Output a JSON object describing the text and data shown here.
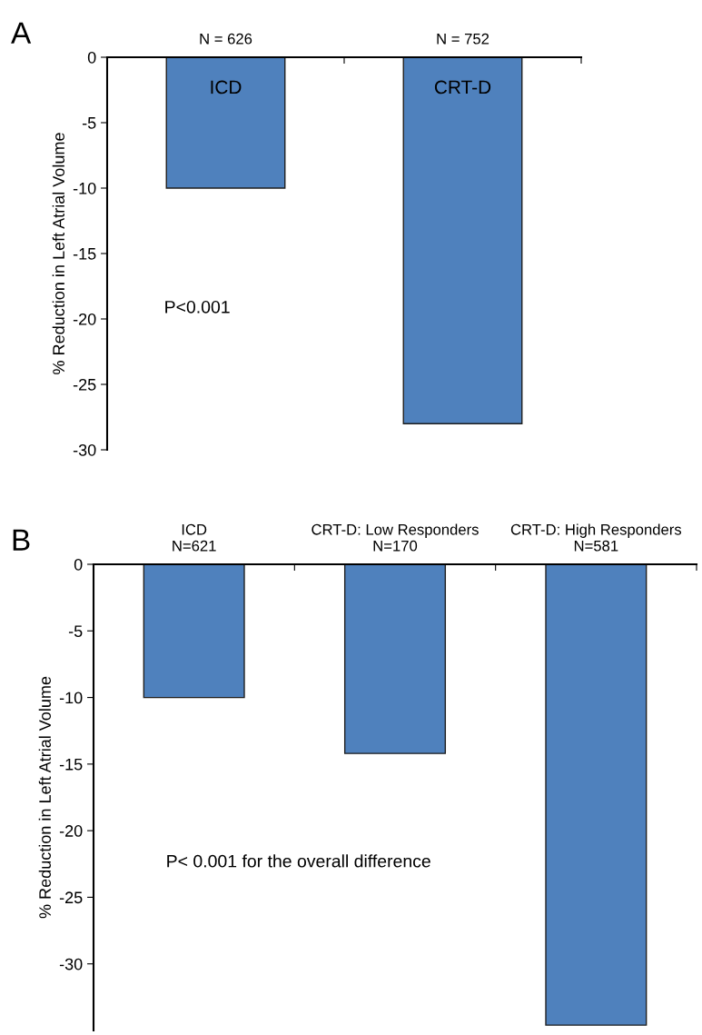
{
  "chart_data": [
    {
      "type": "bar",
      "title": "A",
      "ylabel": "% Reduction in Left Atrial Volume",
      "categories": [
        "N = 626",
        "N = 752"
      ],
      "values": [
        -10,
        -28
      ],
      "color": "#4f81bd",
      "ylim": [
        -30,
        0
      ],
      "yticks": [
        -30,
        -25,
        -20,
        -15,
        -10,
        -5,
        0
      ],
      "grid": false,
      "annotations": [
        "ICD",
        "CRT-D",
        "P<0.001"
      ]
    },
    {
      "type": "bar",
      "title": "B",
      "ylabel": "% Reduction in Left Atrial Volume",
      "categories": [
        "ICD\nN=621",
        "CRT-D: Low Responders\nN=170",
        "CRT-D: High Responders\nN=581"
      ],
      "values": [
        -10,
        -14.2,
        -34.6
      ],
      "color": "#4f81bd",
      "ylim": [
        -35,
        0
      ],
      "yticks": [
        -30,
        -25,
        -20,
        -15,
        -10,
        -5,
        0
      ],
      "grid": false,
      "annotations": [
        "P< 0.001 for the overall difference"
      ]
    }
  ]
}
